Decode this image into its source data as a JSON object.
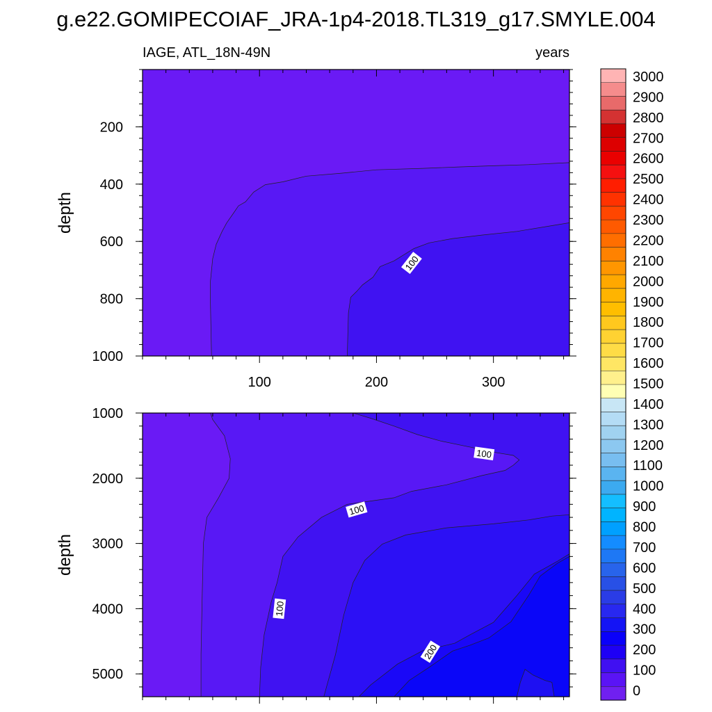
{
  "title": "g.e22.GOMIPECOIAF_JRA-1p4-2018.TL319_g17.SMYLE.004",
  "chart_data": {
    "type": "heatmap",
    "variable_label": "IAGE, ATL_18N-49N",
    "units_label": "years",
    "xlim": [
      0,
      365
    ],
    "x_ticks": [
      100,
      200,
      300
    ],
    "panels": [
      {
        "name": "upper",
        "ylabel": "depth",
        "ylim": [
          0,
          1000
        ],
        "y_ticks": [
          200,
          400,
          600,
          800,
          1000
        ],
        "x_tick_labels_shown": true,
        "regions": [
          {
            "level": "0-50",
            "color": "#6a1af5",
            "boundary": [
              [
                365,
                0
              ],
              [
                0,
                0
              ],
              [
                0,
                1000
              ],
              [
                365,
                1000
              ]
            ]
          },
          {
            "level": "50-100",
            "color": "#5818f5",
            "boundary": [
              [
                365,
                325
              ],
              [
                330,
                332
              ],
              [
                300,
                336
              ],
              [
                270,
                340
              ],
              [
                240,
                345
              ],
              [
                200,
                350
              ],
              [
                170,
                362
              ],
              [
                140,
                372
              ],
              [
                120,
                392
              ],
              [
                105,
                402
              ],
              [
                95,
                428
              ],
              [
                88,
                462
              ],
              [
                82,
                476
              ],
              [
                78,
                500
              ],
              [
                72,
                535
              ],
              [
                68,
                565
              ],
              [
                63,
                610
              ],
              [
                60,
                660
              ],
              [
                58,
                740
              ],
              [
                58,
                810
              ],
              [
                59,
                1000
              ],
              [
                365,
                1000
              ]
            ]
          },
          {
            "level": "100-150",
            "color": "#4012f2",
            "boundary": [
              [
                365,
                535
              ],
              [
                350,
                545
              ],
              [
                320,
                565
              ],
              [
                290,
                578
              ],
              [
                265,
                590
              ],
              [
                245,
                605
              ],
              [
                232,
                625
              ],
              [
                215,
                668
              ],
              [
                203,
                688
              ],
              [
                197,
                725
              ],
              [
                188,
                752
              ],
              [
                183,
                775
              ],
              [
                178,
                795
              ],
              [
                176,
                850
              ],
              [
                175,
                1000
              ],
              [
                365,
                1000
              ]
            ]
          }
        ],
        "contour_labels": [
          {
            "text": "100",
            "x": 230,
            "y": 675,
            "angle": -52
          }
        ]
      },
      {
        "name": "lower",
        "ylabel": "depth",
        "ylim": [
          1000,
          5350
        ],
        "y_ticks": [
          1000,
          2000,
          3000,
          4000,
          5000
        ],
        "x_tick_labels_shown": false,
        "regions": [
          {
            "level": "0-50",
            "color": "#6a1af5",
            "boundary": [
              [
                0,
                1000
              ],
              [
                365,
                1000
              ],
              [
                365,
                5350
              ],
              [
                0,
                5350
              ]
            ]
          },
          {
            "level": "50-100",
            "color": "#5818f5",
            "boundary": [
              [
                58,
                1000
              ],
              [
                365,
                1000
              ],
              [
                365,
                5350
              ],
              [
                50,
                5350
              ],
              [
                50,
                4700
              ],
              [
                51,
                3800
              ],
              [
                52,
                3000
              ],
              [
                55,
                2600
              ],
              [
                65,
                2300
              ],
              [
                74,
                2000
              ],
              [
                75,
                1700
              ],
              [
                70,
                1350
              ],
              [
                60,
                1100
              ]
            ]
          },
          {
            "level": "100-150",
            "color": "#4012f2",
            "boundary": [
              [
                180,
                1000
              ],
              [
                365,
                1000
              ],
              [
                365,
                5350
              ],
              [
                100,
                5350
              ],
              [
                101,
                4900
              ],
              [
                104,
                4400
              ],
              [
                110,
                3900
              ],
              [
                115,
                3600
              ],
              [
                120,
                3200
              ],
              [
                133,
                2900
              ],
              [
                153,
                2600
              ],
              [
                175,
                2400
              ],
              [
                215,
                2300
              ],
              [
                230,
                2200
              ],
              [
                260,
                2100
              ],
              [
                290,
                1960
              ],
              [
                310,
                1880
              ],
              [
                317,
                1800
              ],
              [
                322,
                1720
              ],
              [
                317,
                1650
              ],
              [
                300,
                1600
              ],
              [
                282,
                1530
              ],
              [
                255,
                1430
              ],
              [
                235,
                1330
              ],
              [
                215,
                1200
              ],
              [
                195,
                1080
              ]
            ]
          },
          {
            "level": "150-200",
            "color": "#2c10f5",
            "boundary": [
              [
                365,
                2560
              ],
              [
                350,
                2580
              ],
              [
                330,
                2640
              ],
              [
                300,
                2700
              ],
              [
                260,
                2760
              ],
              [
                225,
                2870
              ],
              [
                205,
                3010
              ],
              [
                190,
                3260
              ],
              [
                180,
                3600
              ],
              [
                172,
                4100
              ],
              [
                165,
                4700
              ],
              [
                155,
                5350
              ],
              [
                365,
                5350
              ]
            ]
          },
          {
            "level": "200-250",
            "color": "#1a08f7",
            "boundary": [
              [
                365,
                3160
              ],
              [
                355,
                3270
              ],
              [
                335,
                3470
              ],
              [
                320,
                3800
              ],
              [
                300,
                4210
              ],
              [
                280,
                4400
              ],
              [
                267,
                4530
              ],
              [
                255,
                4580
              ],
              [
                240,
                4640
              ],
              [
                218,
                4850
              ],
              [
                195,
                5170
              ],
              [
                185,
                5350
              ],
              [
                365,
                5350
              ]
            ]
          },
          {
            "level": "250-300",
            "color": "#0a06f8",
            "boundary": [
              [
                365,
                3200
              ],
              [
                355,
                3300
              ],
              [
                340,
                3500
              ],
              [
                330,
                3800
              ],
              [
                315,
                4200
              ],
              [
                296,
                4450
              ],
              [
                280,
                4560
              ],
              [
                265,
                4650
              ],
              [
                245,
                4900
              ],
              [
                228,
                5100
              ],
              [
                215,
                5350
              ],
              [
                365,
                5350
              ]
            ]
          },
          {
            "level": "150-200",
            "color": "#1e10f2",
            "boundary": [
              [
                320,
                5350
              ],
              [
                323,
                5130
              ],
              [
                327,
                4930
              ],
              [
                334,
                5020
              ],
              [
                344,
                5100
              ],
              [
                350,
                5130
              ],
              [
                352,
                5350
              ]
            ]
          }
        ],
        "contour_labels": [
          {
            "text": "100",
            "x": 292,
            "y": 1620,
            "angle": 8
          },
          {
            "text": "100",
            "x": 183,
            "y": 2480,
            "angle": -16
          },
          {
            "text": "100",
            "x": 117,
            "y": 4000,
            "angle": -84
          },
          {
            "text": "200",
            "x": 246,
            "y": 4660,
            "angle": -58
          }
        ]
      }
    ],
    "colorbar": {
      "labels": [
        "3000",
        "2900",
        "2800",
        "2700",
        "2600",
        "2500",
        "2400",
        "2300",
        "2200",
        "2100",
        "2000",
        "1900",
        "1800",
        "1700",
        "1600",
        "1500",
        "1400",
        "1300",
        "1200",
        "1100",
        "1000",
        "900",
        "800",
        "700",
        "600",
        "500",
        "400",
        "300",
        "200",
        "100",
        "0"
      ],
      "colors": [
        "#ffb4b4",
        "#f58c8c",
        "#e86a6a",
        "#d43232",
        "#cc0000",
        "#dd0000",
        "#ea0000",
        "#f51010",
        "#ff1e00",
        "#ff3200",
        "#ff4600",
        "#ff5a00",
        "#ff6e00",
        "#ff8200",
        "#ff9600",
        "#ffa800",
        "#ffb400",
        "#ffbe00",
        "#ffc81e",
        "#ffd232",
        "#ffdc46",
        "#ffe664",
        "#fff08c",
        "#ffffb4",
        "#c8e6f5",
        "#b4dcf5",
        "#a0d2f0",
        "#8cc8f0",
        "#78bef0",
        "#5ab4f0",
        "#3caaf0",
        "#14beff",
        "#00b4ff",
        "#00a0ff",
        "#148cff",
        "#1e78f5",
        "#2864eb",
        "#2850e6",
        "#2a3ce6",
        "#2828f0",
        "#1414f5",
        "#0a00fa",
        "#1e00f5",
        "#4010f2",
        "#5a14f5",
        "#7020f0"
      ]
    }
  }
}
